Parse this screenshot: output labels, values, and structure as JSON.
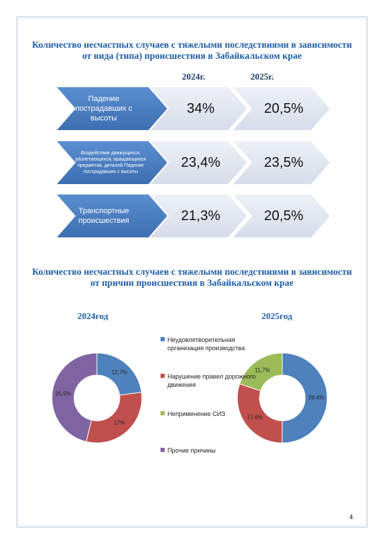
{
  "table": {
    "title": "Количество несчастных случаев с тяжелыми последствиями в зависимости от вида (типа) происшествия в Забайкальском крае",
    "columns": [
      "2024г.",
      "2025г."
    ],
    "rows": [
      {
        "label": "Падение пострадавших с высоты",
        "values": [
          "34%",
          "20,5%"
        ]
      },
      {
        "label": "Воздействие движущихся, разлетающихся, вращающихся предметов, деталей  Падение пострадавших с высоты",
        "values": [
          "23,4%",
          "23,5%"
        ]
      },
      {
        "label": "Транспортные происшествия",
        "values": [
          "21,3%",
          "20,5%"
        ]
      }
    ]
  },
  "section2_title": "Количество несчастных случаев с тяжелыми последствиями в зависимости от причин происшествия в Забайкальском крае",
  "legend": {
    "items": [
      {
        "name": "Неудовлетворительная организация производства",
        "color": "#4f81bd"
      },
      {
        "name": "Нарушение правил дорожного движения",
        "color": "#c0504d"
      },
      {
        "name": "Неприменение СИЗ",
        "color": "#9bbb59"
      },
      {
        "name": "Прочие причины",
        "color": "#8064a2"
      }
    ]
  },
  "chart_data": [
    {
      "type": "pie",
      "title": "2024год",
      "categories": [
        "Неудовлетворительная организация производства",
        "Нарушение правил дорожного движения",
        "Прочие причины"
      ],
      "values": [
        12.7,
        17,
        25.5
      ],
      "value_labels": [
        "12,7%",
        "17%",
        "25,5%"
      ],
      "colors": [
        "#4f81bd",
        "#c0504d",
        "#8064a2"
      ]
    },
    {
      "type": "pie",
      "title": "2025год",
      "categories": [
        "Неудовлетворительная организация производства",
        "Нарушение правил дорожного движения",
        "Неприменение СИЗ"
      ],
      "values": [
        29.4,
        17.6,
        11.7
      ],
      "value_labels": [
        "29,4%",
        "17,6%",
        "11,7%"
      ],
      "colors": [
        "#4f81bd",
        "#c0504d",
        "#9bbb59"
      ]
    }
  ],
  "page_number": "4"
}
